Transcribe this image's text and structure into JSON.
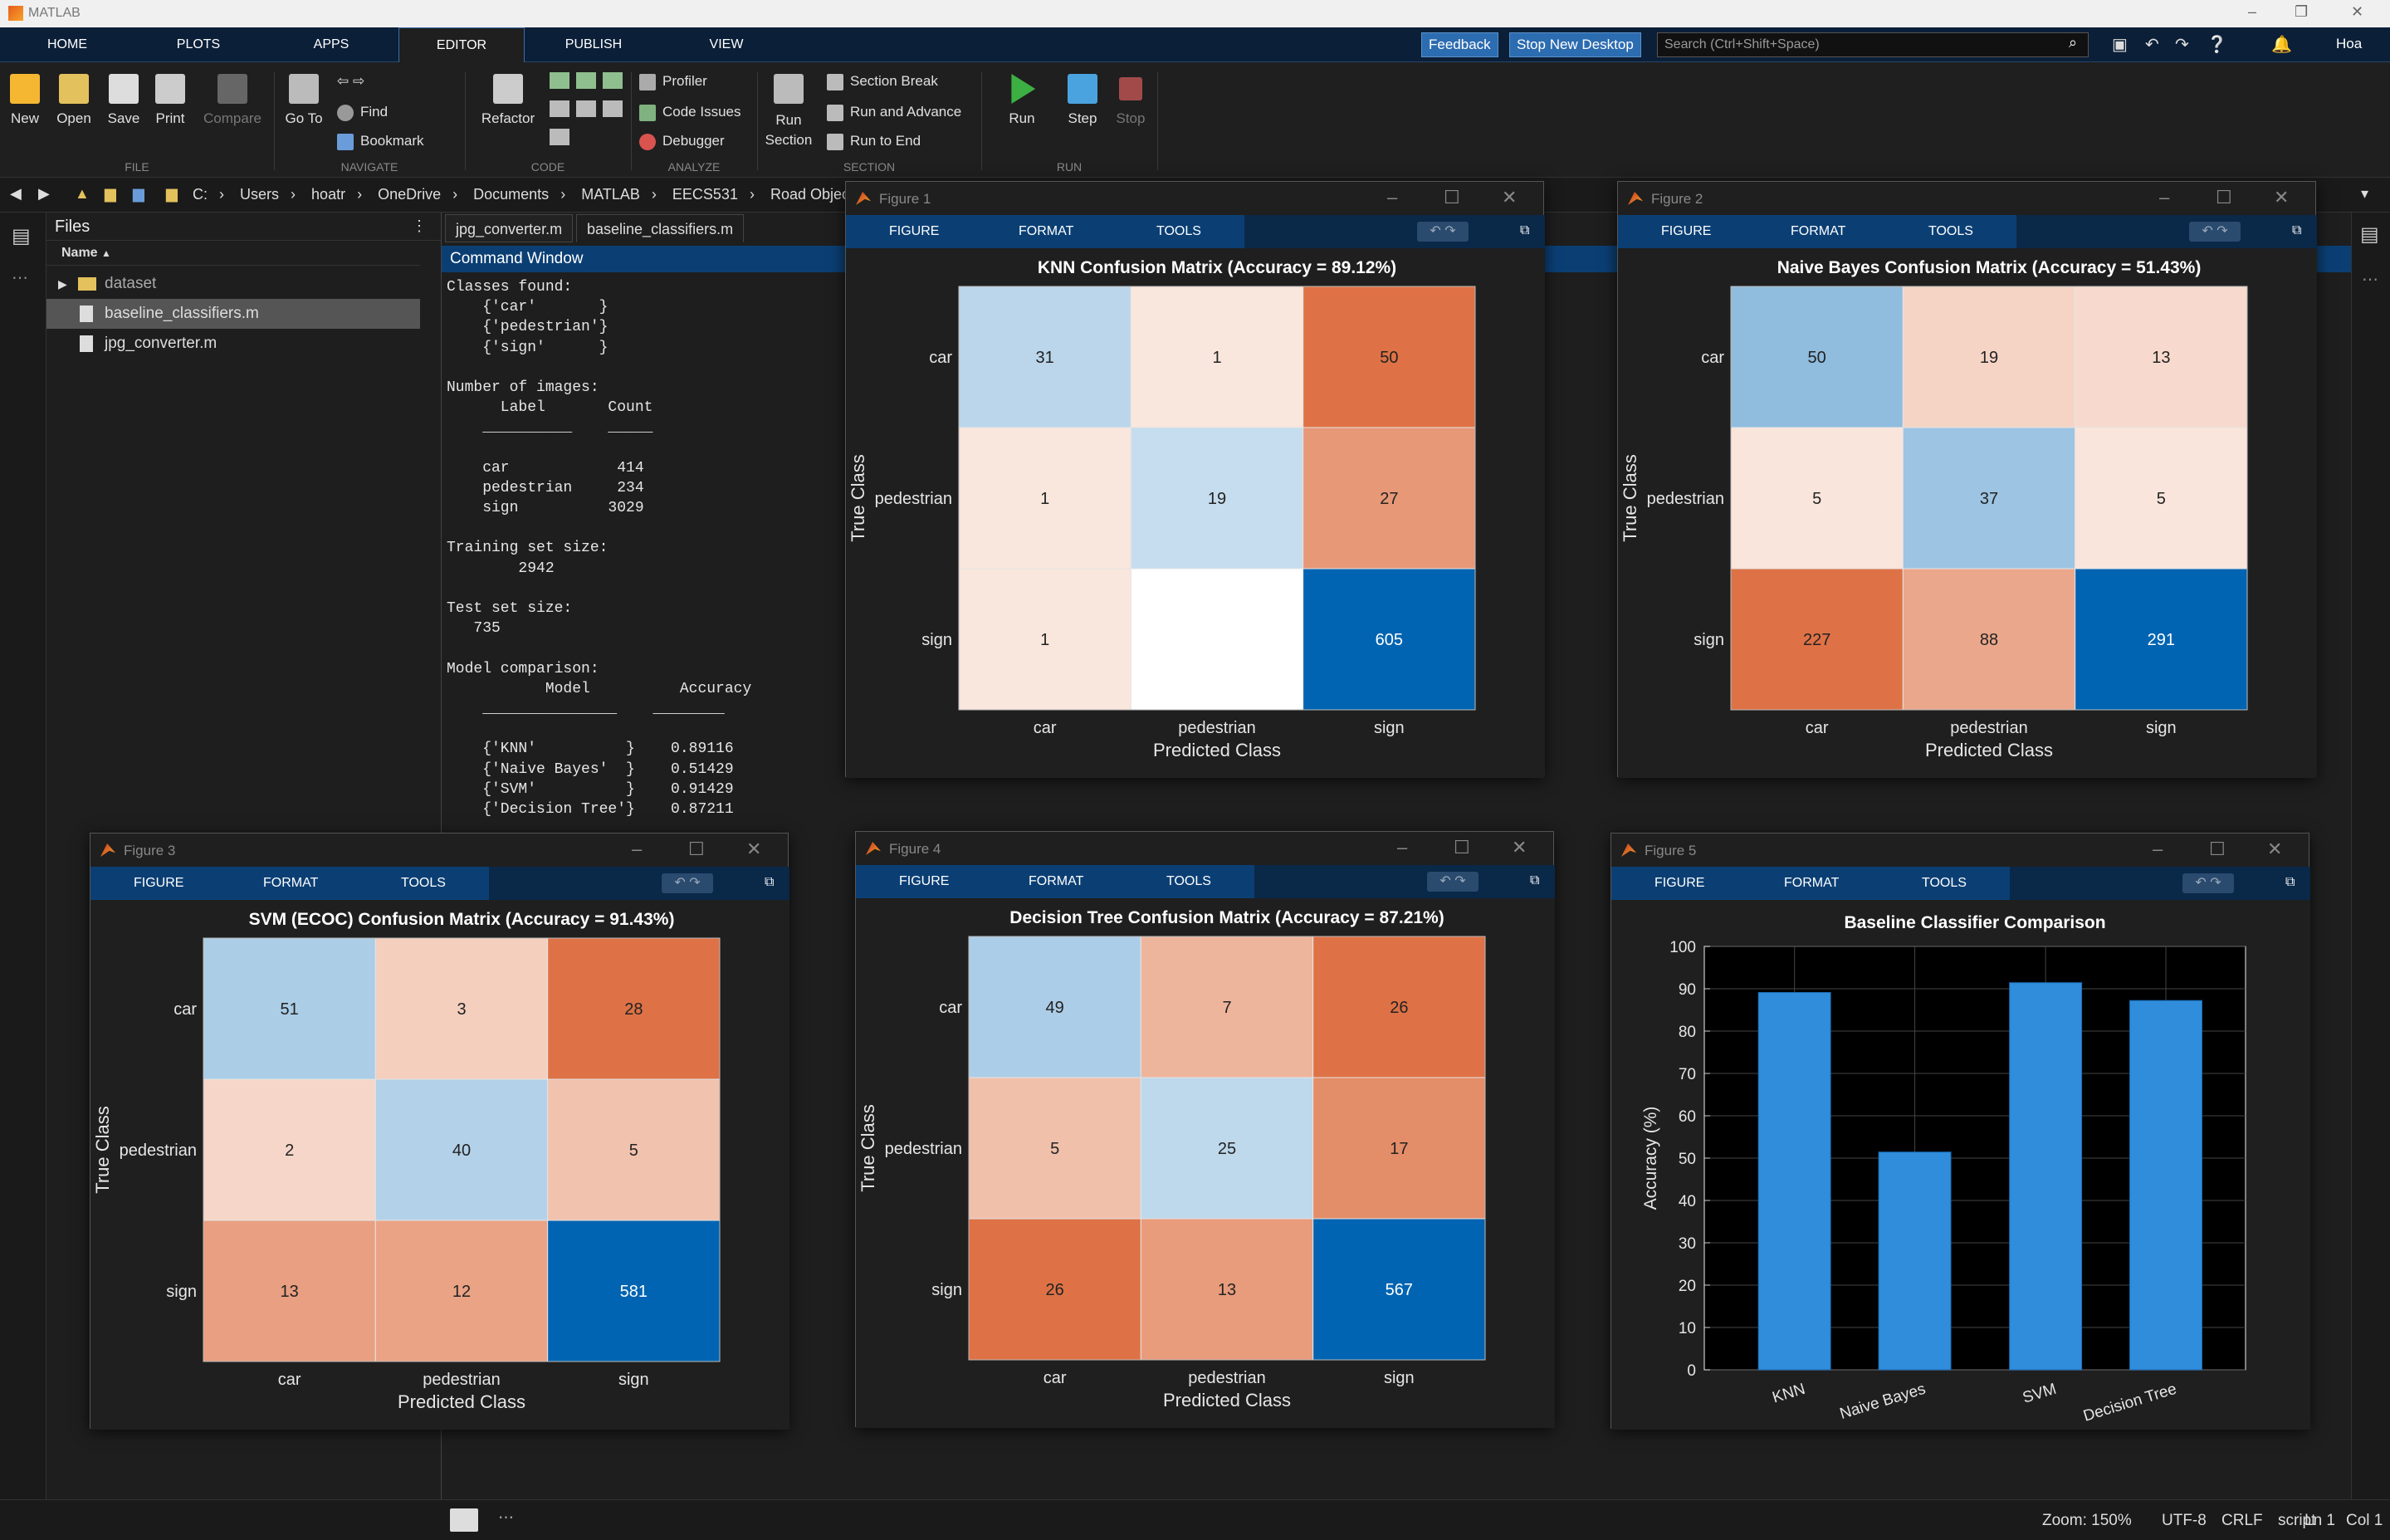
{
  "app": {
    "title": "MATLAB"
  },
  "top_tabs": [
    "HOME",
    "PLOTS",
    "APPS",
    "EDITOR",
    "PUBLISH",
    "VIEW"
  ],
  "top_right": {
    "feedback": "Feedback",
    "stop_new_desktop": "Stop New Desktop",
    "search_placeholder": "Search (Ctrl+Shift+Space)",
    "user": "Hoa"
  },
  "ribbon": {
    "file": {
      "label": "FILE",
      "new": "New",
      "open": "Open",
      "save": "Save",
      "print": "Print",
      "compare": "Compare"
    },
    "navigate": {
      "label": "NAVIGATE",
      "goto": "Go To",
      "find": "Find",
      "bookmark": "Bookmark"
    },
    "code": {
      "label": "CODE",
      "refactor": "Refactor"
    },
    "analyze": {
      "label": "ANALYZE",
      "profiler": "Profiler",
      "code_issues": "Code Issues",
      "debugger": "Debugger"
    },
    "section": {
      "label": "SECTION",
      "run_section": "Run Section",
      "section_break": "Section Break",
      "run_and_advance": "Run and Advance",
      "run_to_end": "Run to End"
    },
    "run": {
      "label": "RUN",
      "run": "Run",
      "step": "Step",
      "stop": "Stop"
    }
  },
  "address": [
    "C:",
    "Users",
    "hoatr",
    "OneDrive",
    "Documents",
    "MATLAB",
    "EECS531",
    "Road Objec"
  ],
  "files": {
    "title": "Files",
    "column": "Name",
    "items": [
      {
        "name": "dataset",
        "type": "folder"
      },
      {
        "name": "baseline_classifiers.m",
        "type": "file",
        "selected": true
      },
      {
        "name": "jpg_converter.m",
        "type": "file"
      }
    ]
  },
  "editor_tabs": [
    "jpg_converter.m",
    "baseline_classifiers.m"
  ],
  "command_window": {
    "title": "Command Window",
    "lines": [
      "Classes found:",
      "    {'car'       }",
      "    {'pedestrian'}",
      "    {'sign'      }",
      "",
      "Number of images:",
      "      Label       Count",
      "    __________    _____",
      "",
      "    car            414",
      "    pedestrian     234",
      "    sign          3029",
      "",
      "Training set size:",
      "        2942",
      "",
      "Test set size:",
      "   735",
      "",
      "Model comparison:",
      "           Model          Accuracy",
      "    _______________    ________",
      "",
      "    {'KNN'          }    0.89116",
      "    {'Naive Bayes'  }    0.51429",
      "    {'SVM'          }    0.91429",
      "    {'Decision Tree'}    0.87211"
    ]
  },
  "figure_toolbar": [
    "FIGURE",
    "FORMAT",
    "TOOLS"
  ],
  "figures": [
    {
      "title": "Figure 1",
      "chart_data": {
        "type": "heatmap",
        "title": "KNN Confusion Matrix (Accuracy = 89.12%)",
        "xlabel": "Predicted Class",
        "ylabel": "True Class",
        "rows": [
          "car",
          "pedestrian",
          "sign"
        ],
        "cols": [
          "car",
          "pedestrian",
          "sign"
        ],
        "values": [
          [
            "31",
            "1",
            "50"
          ],
          [
            "1",
            "19",
            "27"
          ],
          [
            "1",
            "",
            "605"
          ]
        ]
      }
    },
    {
      "title": "Figure 2",
      "chart_data": {
        "type": "heatmap",
        "title": "Naive Bayes Confusion Matrix (Accuracy = 51.43%)",
        "xlabel": "Predicted Class",
        "ylabel": "True Class",
        "rows": [
          "car",
          "pedestrian",
          "sign"
        ],
        "cols": [
          "car",
          "pedestrian",
          "sign"
        ],
        "values": [
          [
            "50",
            "19",
            "13"
          ],
          [
            "5",
            "37",
            "5"
          ],
          [
            "227",
            "88",
            "291"
          ]
        ]
      }
    },
    {
      "title": "Figure 3",
      "chart_data": {
        "type": "heatmap",
        "title": "SVM (ECOC) Confusion Matrix (Accuracy = 91.43%)",
        "xlabel": "Predicted Class",
        "ylabel": "True Class",
        "rows": [
          "car",
          "pedestrian",
          "sign"
        ],
        "cols": [
          "car",
          "pedestrian",
          "sign"
        ],
        "values": [
          [
            "51",
            "3",
            "28"
          ],
          [
            "2",
            "40",
            "5"
          ],
          [
            "13",
            "12",
            "581"
          ]
        ]
      }
    },
    {
      "title": "Figure 4",
      "chart_data": {
        "type": "heatmap",
        "title": "Decision Tree Confusion Matrix (Accuracy = 87.21%)",
        "xlabel": "Predicted Class",
        "ylabel": "True Class",
        "rows": [
          "car",
          "pedestrian",
          "sign"
        ],
        "cols": [
          "car",
          "pedestrian",
          "sign"
        ],
        "values": [
          [
            "49",
            "7",
            "26"
          ],
          [
            "5",
            "25",
            "17"
          ],
          [
            "26",
            "13",
            "567"
          ]
        ]
      }
    },
    {
      "title": "Figure 5",
      "chart_data": {
        "type": "bar",
        "title": "Baseline Classifier Comparison",
        "ylabel": "Accuracy (%)",
        "xlabel": "",
        "categories": [
          "KNN",
          "Naive Bayes",
          "SVM",
          "Decision Tree"
        ],
        "values": [
          89.12,
          51.43,
          91.43,
          87.21
        ],
        "ylim": [
          0,
          100
        ],
        "yticks": [
          0,
          10,
          20,
          30,
          40,
          50,
          60,
          70,
          80,
          90,
          100
        ],
        "grid": true,
        "color": "#2f8ddb"
      }
    }
  ],
  "status": {
    "zoom": "Zoom: 150%",
    "encoding": "UTF-8",
    "eol": "CRLF",
    "mode": "script",
    "ln": "Ln 1",
    "col": "Col 1"
  }
}
